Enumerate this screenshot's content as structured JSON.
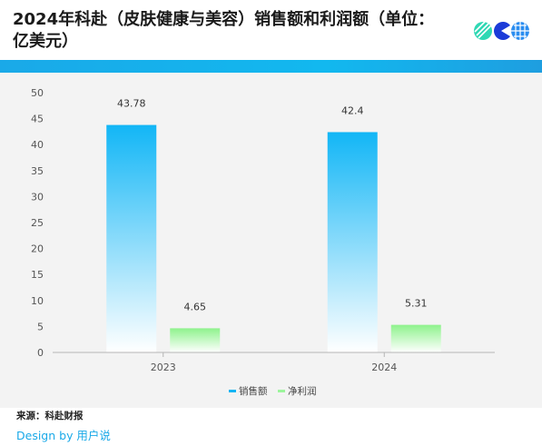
{
  "header": {
    "title": "2024年科赴（皮肤健康与美容）销售额和利润额（单位：亿美元）"
  },
  "chart_data": {
    "type": "bar",
    "categories": [
      "2023",
      "2024"
    ],
    "series": [
      {
        "name": "销售额",
        "values": [
          43.78,
          42.4
        ],
        "color": "#15b5f4"
      },
      {
        "name": "净利润",
        "values": [
          4.65,
          5.31
        ],
        "color": "#9cf59c"
      }
    ],
    "ylim": [
      0,
      50
    ],
    "yticks": [
      0,
      5,
      10,
      15,
      20,
      25,
      30,
      35,
      40,
      45,
      50
    ],
    "legend_position": "bottom",
    "grid": false
  },
  "footer": {
    "source": "来源：科赴财报",
    "brand": "Design by 用户说"
  }
}
